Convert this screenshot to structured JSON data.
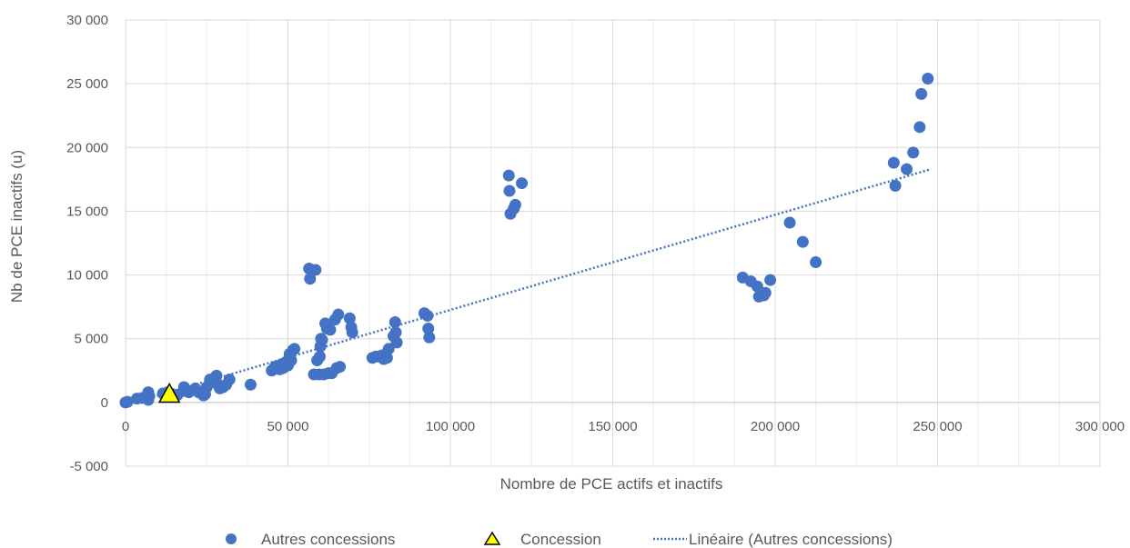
{
  "chart_data": {
    "type": "scatter",
    "title": "",
    "xlabel": "Nombre de PCE actifs et inactifs",
    "ylabel": "Nb de PCE inactifs (u)",
    "xlim": [
      0,
      300000
    ],
    "ylim": [
      -5000,
      30000
    ],
    "x_ticks": [
      0,
      50000,
      100000,
      150000,
      200000,
      250000,
      300000
    ],
    "y_ticks": [
      -5000,
      0,
      5000,
      10000,
      15000,
      20000,
      25000,
      30000
    ],
    "x_tick_labels": [
      "0",
      "50 000",
      "100 000",
      "150 000",
      "200 000",
      "250 000",
      "300 000"
    ],
    "y_tick_labels": [
      "-5 000",
      "0",
      "5 000",
      "10 000",
      "15 000",
      "20 000",
      "25 000",
      "30 000"
    ],
    "grid": true,
    "legend_position": "bottom",
    "series": [
      {
        "name": "Autres concessions",
        "marker": "circle",
        "color": "#4472C4",
        "points": [
          [
            0,
            0
          ],
          [
            600,
            50
          ],
          [
            3500,
            300
          ],
          [
            5000,
            350
          ],
          [
            7000,
            800
          ],
          [
            7300,
            500
          ],
          [
            7000,
            200
          ],
          [
            11500,
            700
          ],
          [
            13000,
            800
          ],
          [
            14500,
            650
          ],
          [
            16000,
            600
          ],
          [
            18000,
            1200
          ],
          [
            18500,
            900
          ],
          [
            19500,
            800
          ],
          [
            21500,
            1100
          ],
          [
            22500,
            800
          ],
          [
            24000,
            550
          ],
          [
            24500,
            650
          ],
          [
            25000,
            1200
          ],
          [
            26000,
            1800
          ],
          [
            27000,
            1600
          ],
          [
            28000,
            2100
          ],
          [
            28500,
            1400
          ],
          [
            29000,
            1100
          ],
          [
            30000,
            1200
          ],
          [
            31000,
            1400
          ],
          [
            32000,
            1800
          ],
          [
            38500,
            1400
          ],
          [
            45000,
            2500
          ],
          [
            46000,
            2800
          ],
          [
            47500,
            2600
          ],
          [
            48000,
            3000
          ],
          [
            48500,
            2700
          ],
          [
            49000,
            2800
          ],
          [
            49500,
            3200
          ],
          [
            50000,
            2900
          ],
          [
            50500,
            3800
          ],
          [
            51000,
            3300
          ],
          [
            51500,
            4100
          ],
          [
            52000,
            4200
          ],
          [
            56500,
            10500
          ],
          [
            56800,
            9700
          ],
          [
            58500,
            10400
          ],
          [
            58000,
            2200
          ],
          [
            59000,
            3300
          ],
          [
            59500,
            2200
          ],
          [
            59800,
            3600
          ],
          [
            60000,
            4400
          ],
          [
            60200,
            5000
          ],
          [
            60500,
            4900
          ],
          [
            61000,
            2200
          ],
          [
            61500,
            6200
          ],
          [
            62000,
            5800
          ],
          [
            62500,
            2300
          ],
          [
            63000,
            5700
          ],
          [
            63500,
            2300
          ],
          [
            64500,
            6500
          ],
          [
            65000,
            2700
          ],
          [
            65500,
            6900
          ],
          [
            66000,
            2800
          ],
          [
            69000,
            6600
          ],
          [
            69500,
            5900
          ],
          [
            69800,
            5500
          ],
          [
            76000,
            3500
          ],
          [
            77000,
            3600
          ],
          [
            78000,
            3600
          ],
          [
            79000,
            3700
          ],
          [
            79500,
            3400
          ],
          [
            80500,
            3500
          ],
          [
            81000,
            4200
          ],
          [
            82500,
            5200
          ],
          [
            83000,
            6300
          ],
          [
            83200,
            5500
          ],
          [
            83500,
            4700
          ],
          [
            92000,
            7000
          ],
          [
            93000,
            6800
          ],
          [
            93200,
            5800
          ],
          [
            93500,
            5100
          ],
          [
            118000,
            17800
          ],
          [
            118200,
            16600
          ],
          [
            118500,
            14800
          ],
          [
            119500,
            15200
          ],
          [
            120000,
            15500
          ],
          [
            122000,
            17200
          ],
          [
            190000,
            9800
          ],
          [
            192500,
            9500
          ],
          [
            194500,
            9100
          ],
          [
            195000,
            8300
          ],
          [
            196500,
            8400
          ],
          [
            197000,
            8600
          ],
          [
            198500,
            9600
          ],
          [
            204500,
            14100
          ],
          [
            208500,
            12600
          ],
          [
            212500,
            11000
          ],
          [
            236500,
            18800
          ],
          [
            237000,
            17000
          ],
          [
            240500,
            18300
          ],
          [
            242500,
            19600
          ],
          [
            244500,
            21600
          ],
          [
            245000,
            24200
          ],
          [
            247000,
            25400
          ]
        ]
      },
      {
        "name": "Concession",
        "marker": "triangle",
        "color": "#FFFF00",
        "points": [
          [
            13500,
            600
          ]
        ]
      }
    ],
    "trendline": {
      "name": "Linéaire (Autres concessions)",
      "style": "dotted",
      "color": "#4472C4",
      "from": [
        0,
        -200
      ],
      "to": [
        248000,
        18300
      ]
    }
  }
}
